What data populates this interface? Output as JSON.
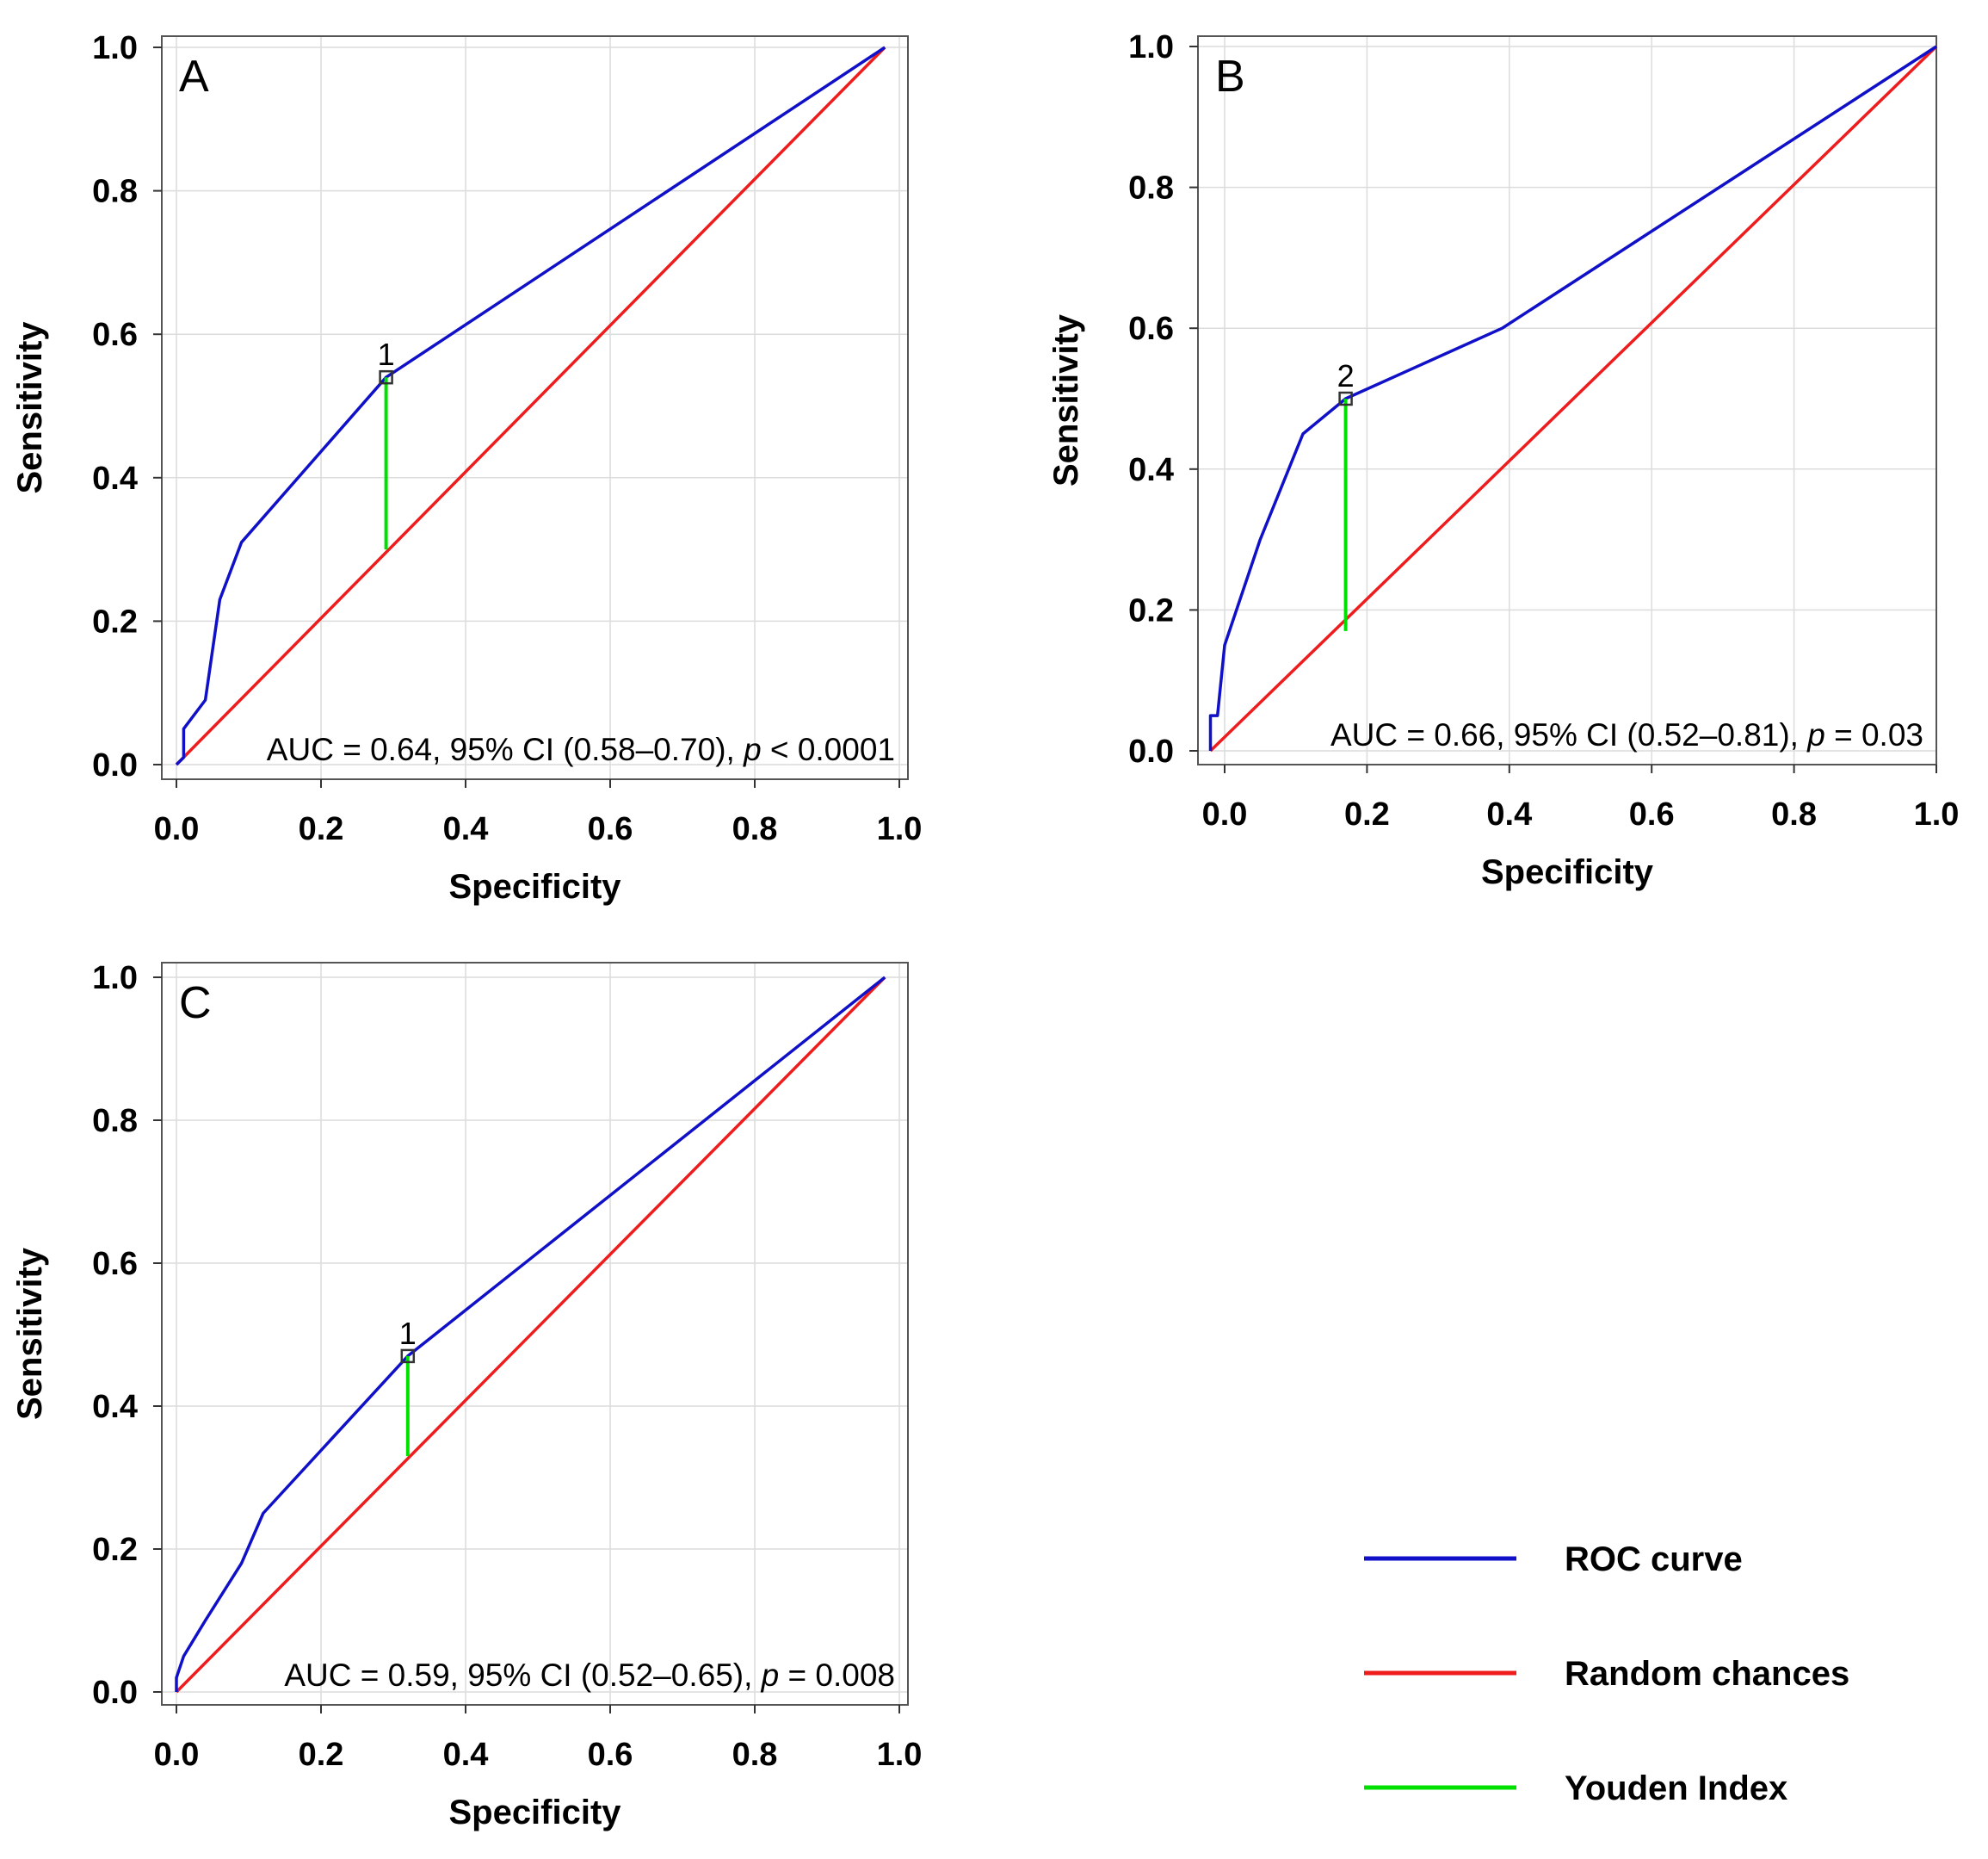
{
  "chart_data": [
    {
      "type": "line",
      "panel_label": "A",
      "xlabel": "Specificity",
      "ylabel": "Sensitivity",
      "xlim": [
        0,
        1
      ],
      "ylim": [
        0,
        1
      ],
      "x_ticks": [
        "0.0",
        "0.2",
        "0.4",
        "0.6",
        "0.8",
        "1.0"
      ],
      "y_ticks": [
        "0.0",
        "0.2",
        "0.4",
        "0.6",
        "0.8",
        "1.0"
      ],
      "grid": true,
      "annotation": {
        "prefix": "AUC = 0.64, 95% CI (0.58–0.70), ",
        "p_symbol": "p",
        "suffix": " < 0.0001"
      },
      "series": [
        {
          "name": "ROC curve",
          "color": "#1010c8",
          "points": [
            [
              0,
              0
            ],
            [
              0.01,
              0.01
            ],
            [
              0.01,
              0.05
            ],
            [
              0.04,
              0.09
            ],
            [
              0.06,
              0.23
            ],
            [
              0.09,
              0.31
            ],
            [
              0.29,
              0.54
            ],
            [
              0.98,
              1.0
            ]
          ]
        },
        {
          "name": "Random chances",
          "color": "#ee1c1c",
          "points": [
            [
              0,
              0
            ],
            [
              0.98,
              1.0
            ]
          ]
        },
        {
          "name": "Youden Index",
          "color": "#00e000",
          "points": [
            [
              0.29,
              0.3
            ],
            [
              0.29,
              0.54
            ]
          ]
        }
      ],
      "cutoff": {
        "label": "1",
        "x": 0.29,
        "y": 0.54
      }
    },
    {
      "type": "line",
      "panel_label": "B",
      "xlabel": "Specificity",
      "ylabel": "Sensitivity",
      "xlim": [
        0,
        1
      ],
      "ylim": [
        0,
        1
      ],
      "x_ticks": [
        "0.0",
        "0.2",
        "0.4",
        "0.6",
        "0.8",
        "1.0"
      ],
      "y_ticks": [
        "0.0",
        "0.2",
        "0.4",
        "0.6",
        "0.8",
        "1.0"
      ],
      "grid": true,
      "annotation": {
        "prefix": "AUC = 0.66, 95% CI (0.52–0.81), ",
        "p_symbol": "p",
        "suffix": " = 0.03"
      },
      "series": [
        {
          "name": "ROC curve",
          "color": "#1010c8",
          "points": [
            [
              -0.02,
              0
            ],
            [
              -0.02,
              0.05
            ],
            [
              -0.01,
              0.05
            ],
            [
              0,
              0.15
            ],
            [
              0.05,
              0.3
            ],
            [
              0.11,
              0.45
            ],
            [
              0.17,
              0.5
            ],
            [
              0.39,
              0.6
            ],
            [
              1.0,
              1.0
            ]
          ]
        },
        {
          "name": "Random chances",
          "color": "#ee1c1c",
          "points": [
            [
              -0.02,
              0
            ],
            [
              1.0,
              1.0
            ]
          ]
        },
        {
          "name": "Youden Index",
          "color": "#00e000",
          "points": [
            [
              0.17,
              0.17
            ],
            [
              0.17,
              0.5
            ]
          ]
        }
      ],
      "cutoff": {
        "label": "2",
        "x": 0.17,
        "y": 0.5
      }
    },
    {
      "type": "line",
      "panel_label": "C",
      "xlabel": "Specificity",
      "ylabel": "Sensitivity",
      "xlim": [
        0,
        1
      ],
      "ylim": [
        0,
        1
      ],
      "x_ticks": [
        "0.0",
        "0.2",
        "0.4",
        "0.6",
        "0.8",
        "1.0"
      ],
      "y_ticks": [
        "0.0",
        "0.2",
        "0.4",
        "0.6",
        "0.8",
        "1.0"
      ],
      "grid": true,
      "annotation": {
        "prefix": "AUC = 0.59, 95% CI (0.52–0.65), ",
        "p_symbol": "p",
        "suffix": " = 0.008"
      },
      "series": [
        {
          "name": "ROC curve",
          "color": "#1010c8",
          "points": [
            [
              0,
              0
            ],
            [
              0,
              0.02
            ],
            [
              0.01,
              0.05
            ],
            [
              0.04,
              0.1
            ],
            [
              0.09,
              0.18
            ],
            [
              0.12,
              0.25
            ],
            [
              0.32,
              0.47
            ],
            [
              0.98,
              1.0
            ]
          ]
        },
        {
          "name": "Random chances",
          "color": "#ee1c1c",
          "points": [
            [
              0,
              0
            ],
            [
              0.98,
              1.0
            ]
          ]
        },
        {
          "name": "Youden Index",
          "color": "#00e000",
          "points": [
            [
              0.32,
              0.33
            ],
            [
              0.32,
              0.47
            ]
          ]
        }
      ],
      "cutoff": {
        "label": "1",
        "x": 0.32,
        "y": 0.47
      }
    }
  ],
  "legend": {
    "placement": "bottom-right",
    "items": [
      {
        "label": "ROC curve",
        "color": "#1010c8"
      },
      {
        "label": "Random chances",
        "color": "#ee1c1c"
      },
      {
        "label": "Youden Index",
        "color": "#00e000"
      }
    ]
  }
}
